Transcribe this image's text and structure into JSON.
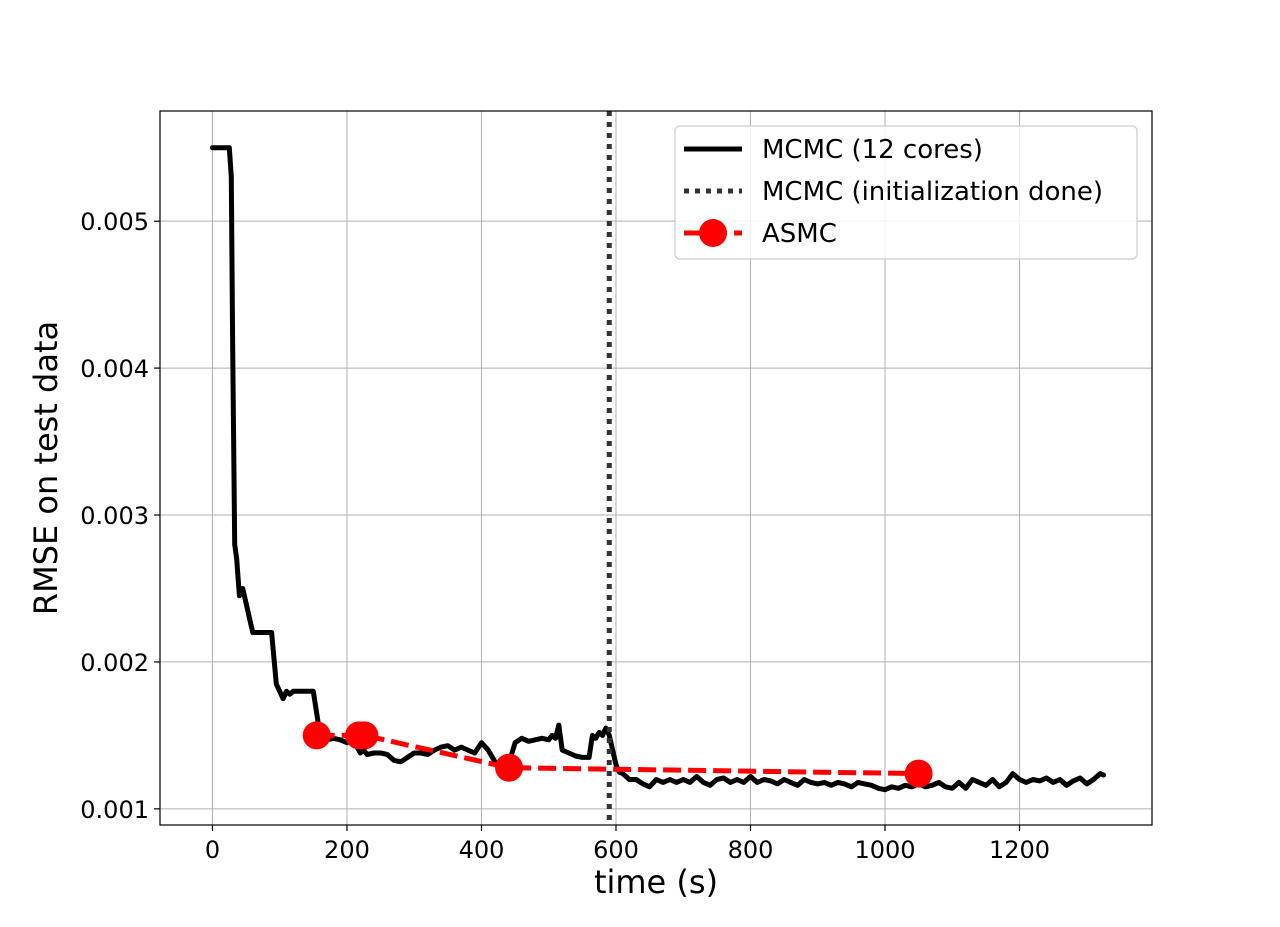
{
  "chart_data": {
    "type": "line",
    "xlabel": "time (s)",
    "ylabel": "RMSE on test data",
    "xlim": [
      -78,
      1397
    ],
    "ylim": [
      0.00089,
      0.00575
    ],
    "xticks": [
      0,
      200,
      400,
      600,
      800,
      1000,
      1200
    ],
    "xtick_labels": [
      "0",
      "200",
      "400",
      "600",
      "800",
      "1000",
      "1200"
    ],
    "yticks": [
      0.001,
      0.002,
      0.003,
      0.004,
      0.005
    ],
    "ytick_labels": [
      "0.001",
      "0.002",
      "0.003",
      "0.004",
      "0.005"
    ],
    "grid": true,
    "legend_position": "top-right",
    "colors": {
      "mcmc": "#000000",
      "init": "#333333",
      "asmc": "#ff0000",
      "grid": "#b0b0b0"
    },
    "series": [
      {
        "name": "MCMC (12 cores)",
        "style": "solid",
        "x": [
          0,
          25,
          28,
          30,
          33,
          36,
          40,
          45,
          50,
          55,
          60,
          70,
          80,
          88,
          92,
          95,
          100,
          105,
          110,
          115,
          120,
          130,
          140,
          150,
          155,
          160,
          170,
          180,
          190,
          200,
          210,
          215,
          220,
          225,
          230,
          240,
          250,
          260,
          270,
          280,
          290,
          300,
          310,
          320,
          330,
          340,
          350,
          360,
          370,
          380,
          390,
          400,
          410,
          420,
          430,
          440,
          450,
          460,
          470,
          480,
          490,
          500,
          505,
          510,
          515,
          520,
          530,
          540,
          550,
          560,
          565,
          570,
          575,
          580,
          585,
          590,
          595,
          600,
          605,
          610,
          615,
          620,
          630,
          640,
          650,
          660,
          670,
          680,
          690,
          700,
          710,
          720,
          730,
          740,
          750,
          760,
          770,
          780,
          790,
          800,
          810,
          820,
          830,
          840,
          850,
          860,
          870,
          880,
          890,
          900,
          910,
          920,
          930,
          940,
          950,
          960,
          970,
          980,
          990,
          1000,
          1010,
          1020,
          1030,
          1040,
          1050,
          1060,
          1070,
          1080,
          1090,
          1100,
          1110,
          1120,
          1130,
          1140,
          1150,
          1160,
          1170,
          1180,
          1190,
          1200,
          1210,
          1220,
          1230,
          1240,
          1250,
          1260,
          1270,
          1280,
          1290,
          1300,
          1310,
          1320,
          1325
        ],
        "y": [
          0.0055,
          0.0055,
          0.0053,
          0.0042,
          0.0028,
          0.0027,
          0.00245,
          0.0025,
          0.0024,
          0.0023,
          0.0022,
          0.0022,
          0.0022,
          0.0022,
          0.002,
          0.00185,
          0.0018,
          0.00175,
          0.0018,
          0.00178,
          0.0018,
          0.0018,
          0.0018,
          0.0018,
          0.00165,
          0.0015,
          0.00147,
          0.00148,
          0.00147,
          0.00145,
          0.0015,
          0.00142,
          0.00138,
          0.0014,
          0.00137,
          0.00138,
          0.00138,
          0.00137,
          0.00133,
          0.00132,
          0.00135,
          0.00138,
          0.00138,
          0.00137,
          0.0014,
          0.00142,
          0.00143,
          0.0014,
          0.00142,
          0.0014,
          0.00138,
          0.00145,
          0.0014,
          0.00132,
          0.00128,
          0.0013,
          0.00145,
          0.00148,
          0.00146,
          0.00147,
          0.00148,
          0.00147,
          0.0015,
          0.00148,
          0.00157,
          0.0014,
          0.00138,
          0.00136,
          0.00135,
          0.00135,
          0.0015,
          0.00148,
          0.00152,
          0.0015,
          0.00155,
          0.0015,
          0.0014,
          0.0013,
          0.00125,
          0.00124,
          0.00122,
          0.0012,
          0.0012,
          0.00117,
          0.00115,
          0.0012,
          0.00118,
          0.0012,
          0.00118,
          0.0012,
          0.00118,
          0.00122,
          0.00118,
          0.00116,
          0.0012,
          0.00121,
          0.00118,
          0.0012,
          0.00118,
          0.00122,
          0.00118,
          0.0012,
          0.00119,
          0.00117,
          0.0012,
          0.00118,
          0.00116,
          0.0012,
          0.00118,
          0.00117,
          0.00118,
          0.00116,
          0.00118,
          0.00117,
          0.00115,
          0.00118,
          0.00117,
          0.00116,
          0.00114,
          0.00113,
          0.00115,
          0.00114,
          0.00116,
          0.00115,
          0.00117,
          0.00115,
          0.00116,
          0.00118,
          0.00115,
          0.00114,
          0.00118,
          0.00114,
          0.0012,
          0.00118,
          0.00116,
          0.0012,
          0.00115,
          0.00118,
          0.00124,
          0.0012,
          0.00118,
          0.0012,
          0.00119,
          0.00121,
          0.00118,
          0.0012,
          0.00116,
          0.00119,
          0.00121,
          0.00117,
          0.0012,
          0.00124,
          0.00123
        ]
      },
      {
        "name": "MCMC (initialization done)",
        "style": "dotted",
        "x": [
          590,
          590
        ],
        "y": [
          0.00089,
          0.00575
        ]
      },
      {
        "name": "ASMC",
        "style": "dashed-markers",
        "x": [
          155,
          218,
          226,
          441,
          1050
        ],
        "y": [
          0.0015,
          0.0015,
          0.0015,
          0.00128,
          0.00124
        ]
      }
    ]
  }
}
